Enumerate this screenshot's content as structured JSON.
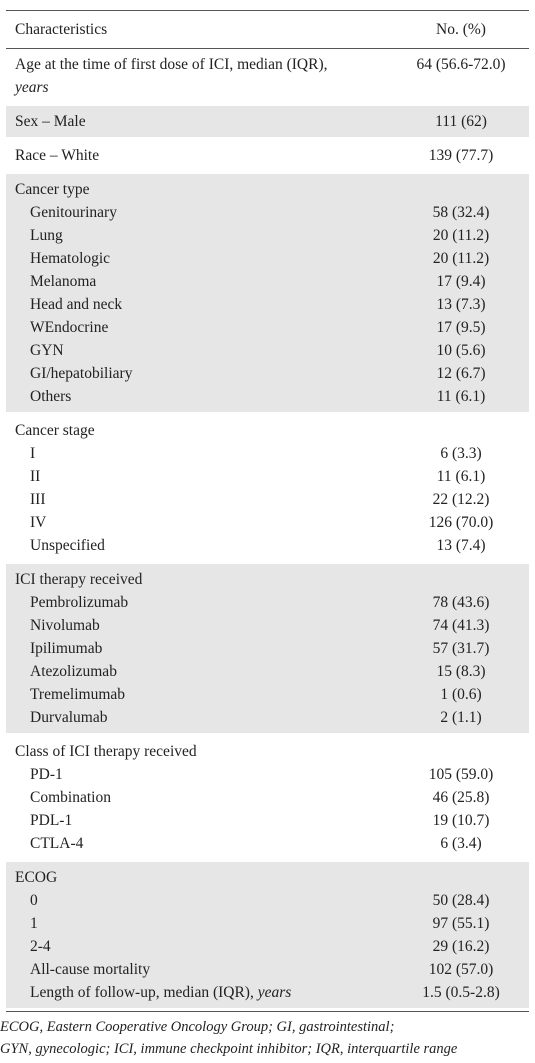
{
  "header": {
    "label": "Characteristics",
    "value": "No. (%)"
  },
  "groups": [
    {
      "rows": [
        {
          "label": "Age at the time of first dose of ICI, median (IQR),",
          "unit": "years",
          "value": "64 (56.6-72.0)"
        }
      ]
    },
    {
      "rows": [
        {
          "label": "Sex – Male",
          "value": "111 (62)"
        }
      ]
    },
    {
      "rows": [
        {
          "label": "Race – White",
          "value": "139 (77.7)"
        }
      ]
    },
    {
      "heading": "Cancer type",
      "rows": [
        {
          "label": "Genitourinary",
          "value": "58 (32.4)"
        },
        {
          "label": "Lung",
          "value": "20 (11.2)"
        },
        {
          "label": "Hematologic",
          "value": "20 (11.2)"
        },
        {
          "label": "Melanoma",
          "value": "17 (9.4)"
        },
        {
          "label": "Head and neck",
          "value": "13 (7.3)"
        },
        {
          "label": "WEndocrine",
          "value": "17 (9.5)"
        },
        {
          "label": "GYN",
          "value": "10 (5.6)"
        },
        {
          "label": "GI/hepatobiliary",
          "value": "12 (6.7)"
        },
        {
          "label": "Others",
          "value": "11 (6.1)"
        }
      ]
    },
    {
      "heading": "Cancer stage",
      "rows": [
        {
          "label": "I",
          "value": "6 (3.3)"
        },
        {
          "label": "II",
          "value": "11 (6.1)"
        },
        {
          "label": "III",
          "value": "22 (12.2)"
        },
        {
          "label": "IV",
          "value": "126 (70.0)"
        },
        {
          "label": "Unspecified",
          "value": "13 (7.4)"
        }
      ]
    },
    {
      "heading": "ICI therapy received",
      "rows": [
        {
          "label": "Pembrolizumab",
          "value": "78 (43.6)"
        },
        {
          "label": "Nivolumab",
          "value": "74 (41.3)"
        },
        {
          "label": "Ipilimumab",
          "value": "57 (31.7)"
        },
        {
          "label": "Atezolizumab",
          "value": "15 (8.3)"
        },
        {
          "label": "Tremelimumab",
          "value": "1 (0.6)"
        },
        {
          "label": "Durvalumab",
          "value": "2 (1.1)"
        }
      ]
    },
    {
      "heading": "Class of ICI therapy received",
      "rows": [
        {
          "label": "PD-1",
          "value": "105 (59.0)"
        },
        {
          "label": "Combination",
          "value": "46 (25.8)"
        },
        {
          "label": "PDL-1",
          "value": "19 (10.7)"
        },
        {
          "label": "CTLA-4",
          "value": "6 (3.4)"
        }
      ]
    },
    {
      "heading": "ECOG",
      "rows": [
        {
          "label": "0",
          "value": "50 (28.4)"
        },
        {
          "label": "1",
          "value": "97 (55.1)"
        },
        {
          "label": "2-4",
          "value": "29 (16.2)"
        },
        {
          "label": "All-cause mortality",
          "value": "102 (57.0)"
        },
        {
          "label": "Length of follow-up, median (IQR),",
          "unit": "years",
          "value": "1.5 (0.5-2.8)"
        }
      ]
    }
  ],
  "footer": [
    "ECOG, Eastern Cooperative Oncology Group; GI, gastrointestinal;",
    "GYN, gynecologic; ICI, immune checkpoint inhibitor; IQR, interquartile range"
  ]
}
